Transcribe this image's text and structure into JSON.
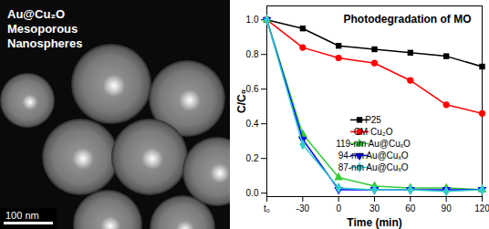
{
  "image": {
    "caption_lines": [
      "Au@Cu₂O",
      "Mesoporous",
      "Nanospheres"
    ],
    "scale_bar_label": "100 nm"
  },
  "chart_data": {
    "type": "line",
    "title": "Photodegradation of MO",
    "x_label": "Time (min)",
    "y_label": "C/C₀",
    "x": [
      -60,
      -30,
      0,
      30,
      60,
      90,
      120
    ],
    "xlim": [
      -60,
      120
    ],
    "xticks": [
      {
        "value": -60,
        "label": "t₀"
      },
      -30,
      0,
      30,
      60,
      90,
      120
    ],
    "ylim": [
      -0.02,
      1.08
    ],
    "yticks": [
      {
        "value": 0,
        "label": "0.0"
      },
      0.2,
      0.4,
      0.6,
      0.8,
      {
        "value": 1,
        "label": "1.0"
      }
    ],
    "grid": false,
    "legend": "right",
    "series": [
      {
        "name": "P25",
        "color": "#000000",
        "marker": "square",
        "line_style": "solid",
        "values": [
          1.0,
          0.95,
          0.85,
          0.83,
          0.81,
          0.79,
          0.73
        ]
      },
      {
        "name": "CM Cu₂O",
        "color": "#ff0000",
        "marker": "circle",
        "line_style": "solid",
        "values": [
          1.0,
          0.84,
          0.78,
          0.75,
          0.65,
          0.51,
          0.46
        ]
      },
      {
        "name": "119-nm Au@CuₓO",
        "color": "#33cc33",
        "marker": "triangle",
        "line_style": "solid",
        "values": [
          1.0,
          0.34,
          0.09,
          0.04,
          0.03,
          0.03,
          0.02
        ]
      },
      {
        "name": "94-nm Au@CuₓO",
        "color": "#0000ff",
        "marker": "triangle-down",
        "line_style": "solid",
        "values": [
          1.0,
          0.31,
          0.02,
          0.02,
          0.02,
          0.02,
          0.02
        ]
      },
      {
        "name": "87-nm Au@CuₓO",
        "color": "#33cccc",
        "marker": "diamond",
        "line_style": "solid",
        "values": [
          1.0,
          0.28,
          0.03,
          0.02,
          0.02,
          0.01,
          0.02
        ]
      }
    ]
  }
}
